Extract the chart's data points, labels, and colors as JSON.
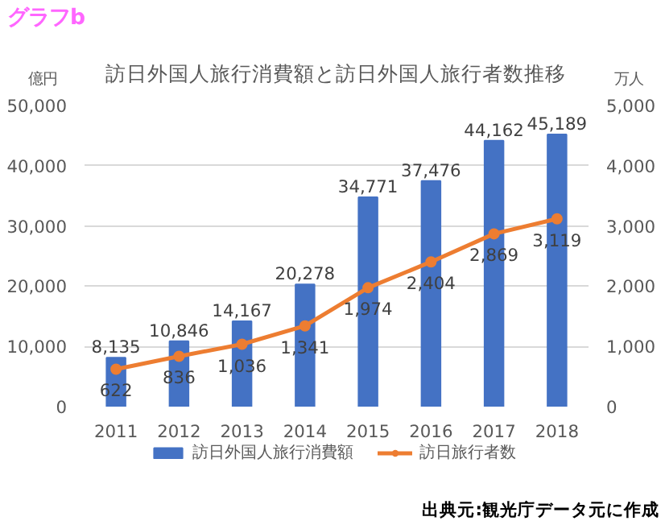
{
  "chart_data": {
    "type": "bar",
    "title": "訪日外国人旅行消費額と訪日外国人旅行者数推移",
    "ylabel": "億円",
    "y2label": "万人",
    "categories": [
      "2011",
      "2012",
      "2013",
      "2014",
      "2015",
      "2016",
      "2017",
      "2018"
    ],
    "series": [
      {
        "name": "訪日外国人旅行消費額",
        "color": "#4472c4",
        "values": [
          8135,
          10846,
          14167,
          20278,
          34771,
          37476,
          44162,
          45189
        ],
        "value_labels": [
          "8,135",
          "10,846",
          "14,167",
          "20,278",
          "34,771",
          "37,476",
          "44,162",
          "45,189"
        ]
      },
      {
        "name": "訪日旅行者数",
        "type": "line",
        "axis": "y2",
        "color": "#ed7d31",
        "values": [
          622,
          836,
          1036,
          1341,
          1974,
          2404,
          2869,
          3119
        ],
        "value_labels": [
          "622",
          "836",
          "1,036",
          "1,341",
          "1,974",
          "2,404",
          "2,869",
          "3,119"
        ]
      }
    ],
    "ylim": [
      0,
      50000
    ],
    "yticks": [
      {
        "value": 0,
        "label": "0"
      },
      {
        "value": 10000,
        "label": "10,000"
      },
      {
        "value": 20000,
        "label": "20,000"
      },
      {
        "value": 30000,
        "label": "30,000"
      },
      {
        "value": 40000,
        "label": "40,000"
      },
      {
        "value": 50000,
        "label": "50,000"
      }
    ],
    "y2lim": [
      0,
      5000
    ],
    "y2ticks": [
      {
        "value": 0,
        "label": "0"
      },
      {
        "value": 1000,
        "label": "1,000"
      },
      {
        "value": 2000,
        "label": "2,000"
      },
      {
        "value": 3000,
        "label": "3,000"
      },
      {
        "value": 4000,
        "label": "4,000"
      },
      {
        "value": 5000,
        "label": "5,000"
      }
    ],
    "grid": "y",
    "legend": "bottom",
    "marker": "circle",
    "line_style": "solid",
    "annotations": [
      "グラフb",
      "出典元:観光庁データ元に作成"
    ]
  }
}
